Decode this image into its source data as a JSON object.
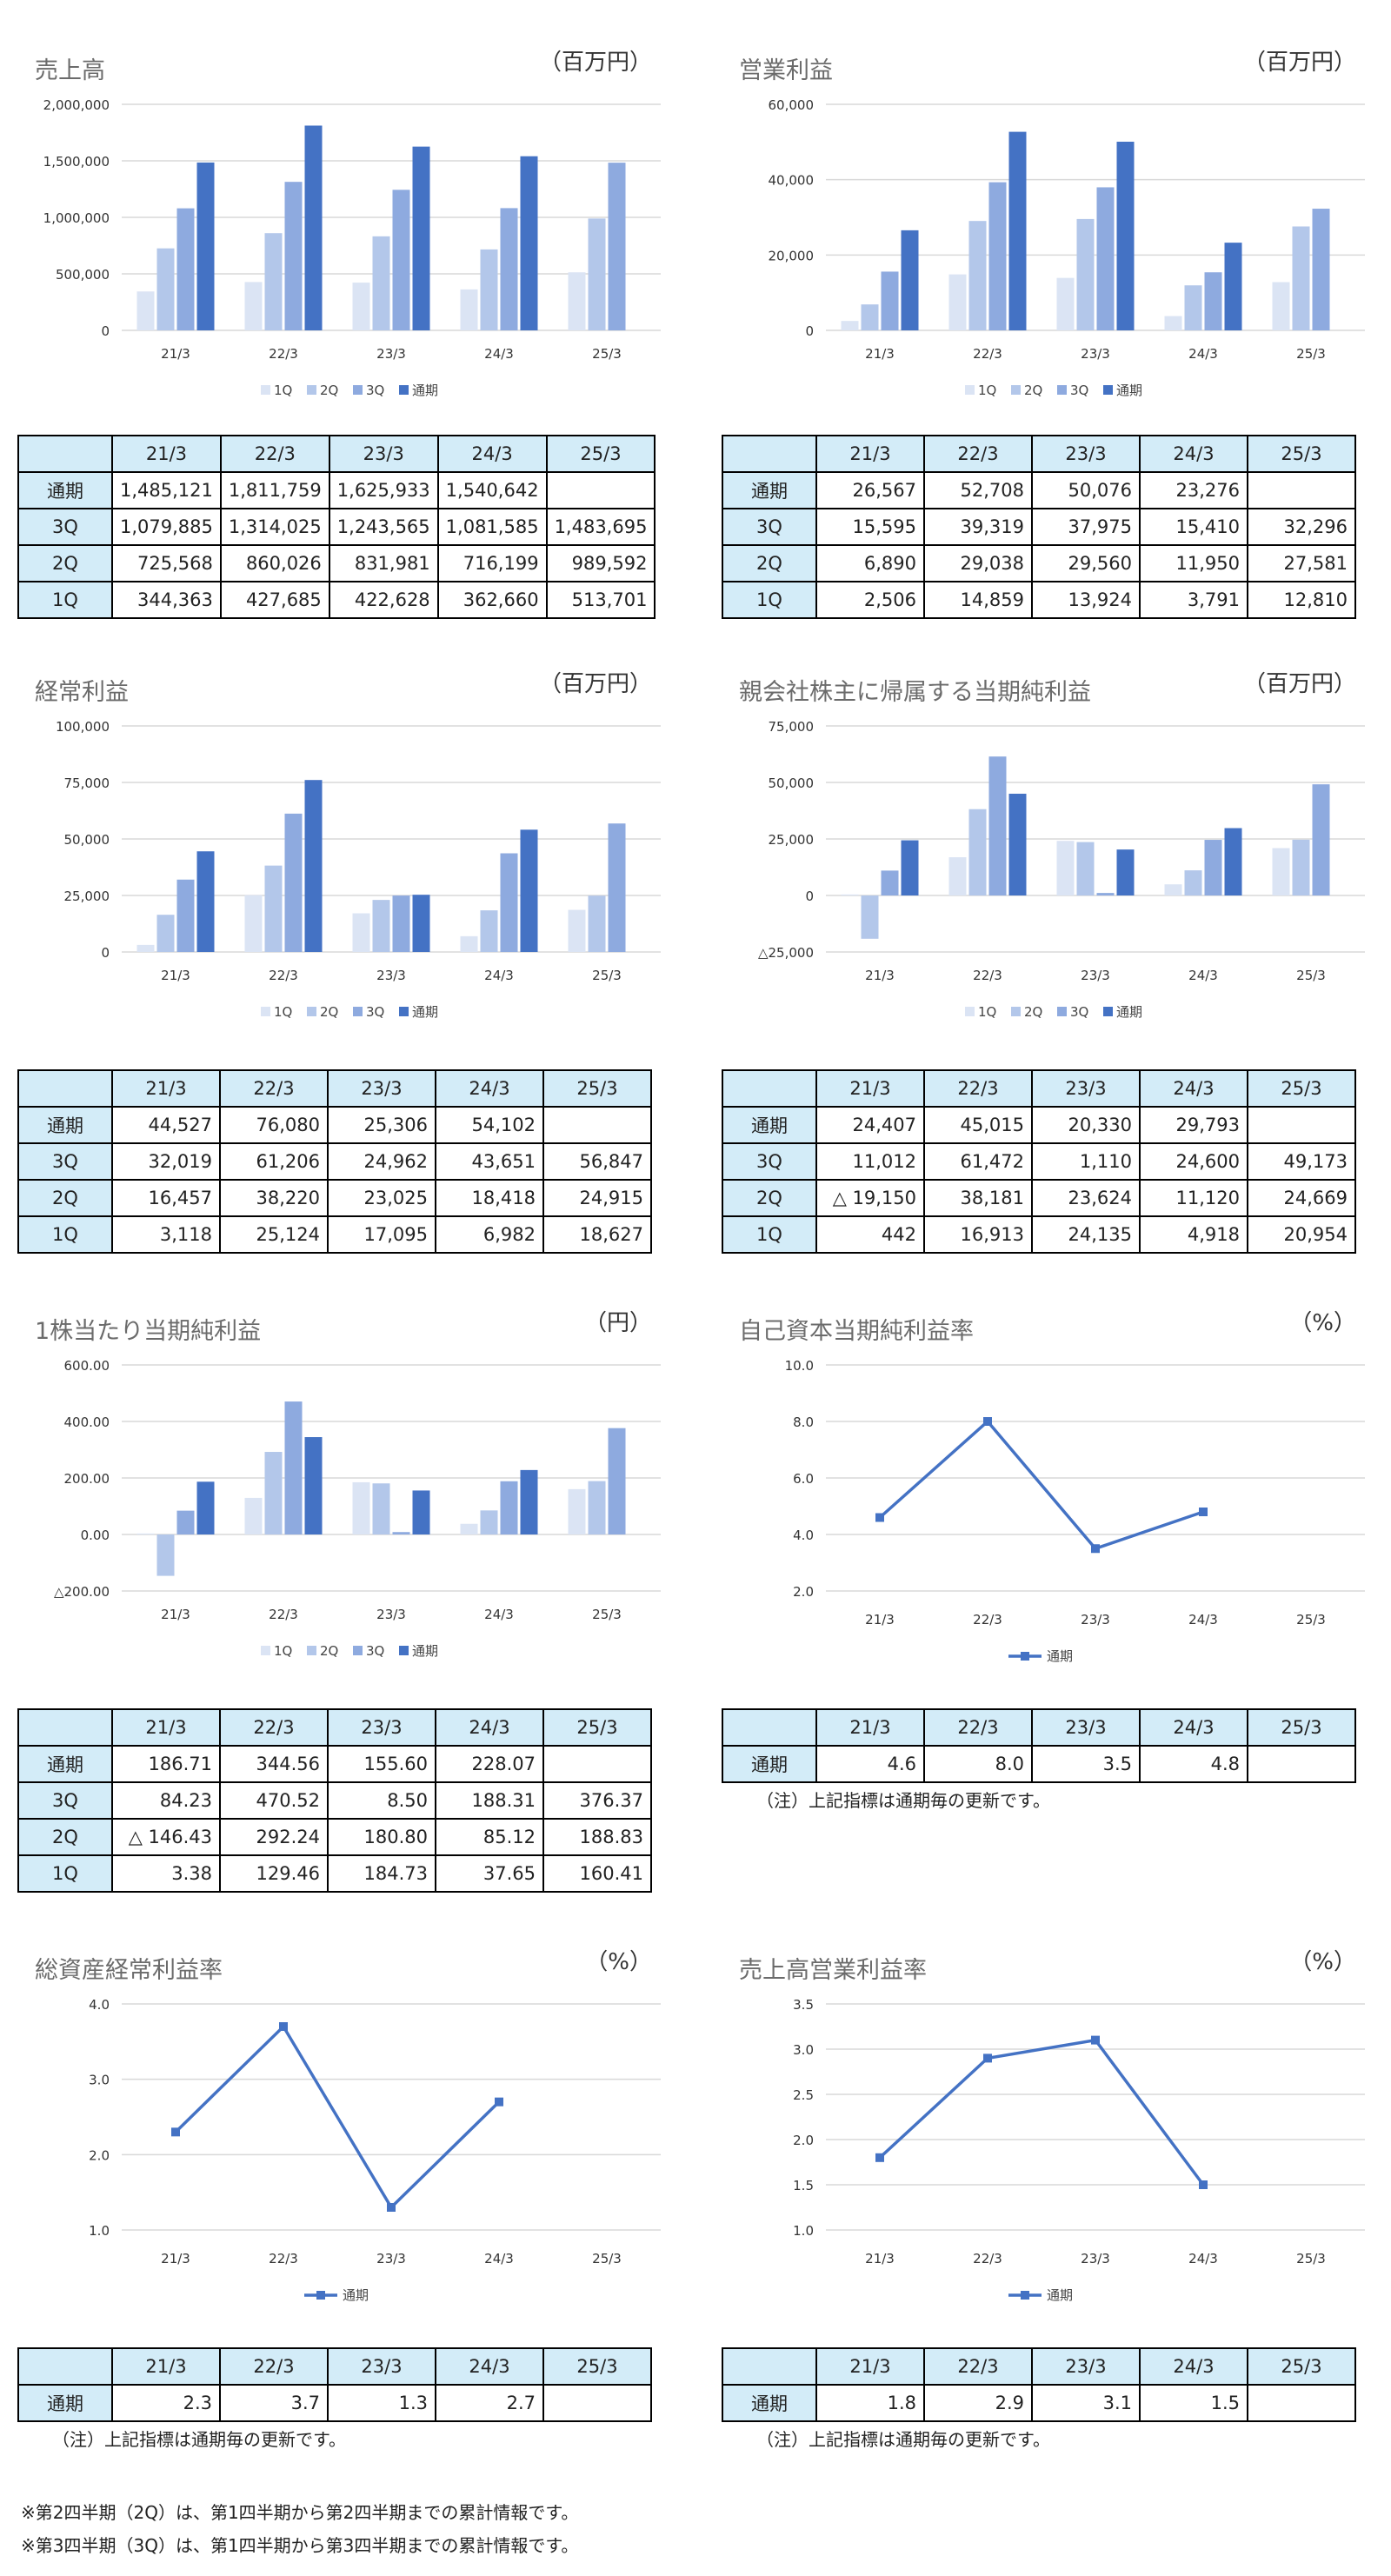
{
  "years": [
    "21/3",
    "22/3",
    "23/3",
    "24/3",
    "25/3"
  ],
  "qlabels": [
    "1Q",
    "2Q",
    "3Q",
    "通期"
  ],
  "colors": {
    "q1": "#dbe4f4",
    "q2": "#b3c7ea",
    "q3": "#8eaadf",
    "full": "#4472c4",
    "grid": "#d9d9d9",
    "header": "#d3ecf8"
  },
  "note_annual": "（注）上記指標は通期毎の更新です。",
  "footnote_2q": "※第2四半期（2Q）は、第1四半期から第2四半期までの累計情報です。",
  "footnote_3q": "※第3四半期（3Q）は、第1四半期から第3四半期までの累計情報です。",
  "panels": [
    {
      "title": "売上高",
      "unit": "（百万円）"
    },
    {
      "title": "営業利益",
      "unit": "（百万円）"
    },
    {
      "title": "経常利益",
      "unit": "（百万円）"
    },
    {
      "title": "親会社株主に帰属する当期純利益",
      "unit": "（百万円）"
    },
    {
      "title": "1株当たり当期純利益",
      "unit": "（円）"
    },
    {
      "title": "自己資本当期純利益率",
      "unit": "（%）"
    },
    {
      "title": "総資産経常利益率",
      "unit": "（%）"
    },
    {
      "title": "売上高営業利益率",
      "unit": "（%）"
    }
  ],
  "chart_data": [
    {
      "type": "bar",
      "title": "売上高",
      "categories": [
        "21/3",
        "22/3",
        "23/3",
        "24/3",
        "25/3"
      ],
      "ylim": [
        0,
        2000000
      ],
      "yticks": [
        {
          "v": 0,
          "label": "0"
        },
        {
          "v": 500000,
          "label": "500,000"
        },
        {
          "v": 1000000,
          "label": "1,000,000"
        },
        {
          "v": 1500000,
          "label": "1,500,000"
        },
        {
          "v": 2000000,
          "label": "2,000,000"
        }
      ],
      "series": [
        {
          "name": "1Q",
          "values": [
            344363,
            427685,
            422628,
            362660,
            513701
          ]
        },
        {
          "name": "2Q",
          "values": [
            725568,
            860026,
            831981,
            716199,
            989592
          ]
        },
        {
          "name": "3Q",
          "values": [
            1079885,
            1314025,
            1243565,
            1081585,
            1483695
          ]
        },
        {
          "name": "通期",
          "values": [
            1485121,
            1811759,
            1625933,
            1540642,
            null
          ]
        }
      ],
      "table": {
        "header": [
          "21/3",
          "22/3",
          "23/3",
          "24/3",
          "25/3"
        ],
        "rows": [
          {
            "label": "通期",
            "cells": [
              "1,485,121",
              "1,811,759",
              "1,625,933",
              "1,540,642",
              ""
            ]
          },
          {
            "label": "3Q",
            "cells": [
              "1,079,885",
              "1,314,025",
              "1,243,565",
              "1,081,585",
              "1,483,695"
            ]
          },
          {
            "label": "2Q",
            "cells": [
              "725,568",
              "860,026",
              "831,981",
              "716,199",
              "989,592"
            ]
          },
          {
            "label": "1Q",
            "cells": [
              "344,363",
              "427,685",
              "422,628",
              "362,660",
              "513,701"
            ]
          }
        ]
      }
    },
    {
      "type": "bar",
      "title": "営業利益",
      "categories": [
        "21/3",
        "22/3",
        "23/3",
        "24/3",
        "25/3"
      ],
      "ylim": [
        0,
        60000
      ],
      "yticks": [
        {
          "v": 0,
          "label": "0"
        },
        {
          "v": 20000,
          "label": "20,000"
        },
        {
          "v": 40000,
          "label": "40,000"
        },
        {
          "v": 60000,
          "label": "60,000"
        }
      ],
      "series": [
        {
          "name": "1Q",
          "values": [
            2506,
            14859,
            13924,
            3791,
            12810
          ]
        },
        {
          "name": "2Q",
          "values": [
            6890,
            29038,
            29560,
            11950,
            27581
          ]
        },
        {
          "name": "3Q",
          "values": [
            15595,
            39319,
            37975,
            15410,
            32296
          ]
        },
        {
          "name": "通期",
          "values": [
            26567,
            52708,
            50076,
            23276,
            null
          ]
        }
      ],
      "table": {
        "header": [
          "21/3",
          "22/3",
          "23/3",
          "24/3",
          "25/3"
        ],
        "rows": [
          {
            "label": "通期",
            "cells": [
              "26,567",
              "52,708",
              "50,076",
              "23,276",
              ""
            ]
          },
          {
            "label": "3Q",
            "cells": [
              "15,595",
              "39,319",
              "37,975",
              "15,410",
              "32,296"
            ]
          },
          {
            "label": "2Q",
            "cells": [
              "6,890",
              "29,038",
              "29,560",
              "11,950",
              "27,581"
            ]
          },
          {
            "label": "1Q",
            "cells": [
              "2,506",
              "14,859",
              "13,924",
              "3,791",
              "12,810"
            ]
          }
        ]
      }
    },
    {
      "type": "bar",
      "title": "経常利益",
      "categories": [
        "21/3",
        "22/3",
        "23/3",
        "24/3",
        "25/3"
      ],
      "ylim": [
        0,
        100000
      ],
      "yticks": [
        {
          "v": 0,
          "label": "0"
        },
        {
          "v": 25000,
          "label": "25,000"
        },
        {
          "v": 50000,
          "label": "50,000"
        },
        {
          "v": 75000,
          "label": "75,000"
        },
        {
          "v": 100000,
          "label": "100,000"
        }
      ],
      "series": [
        {
          "name": "1Q",
          "values": [
            3118,
            25124,
            17095,
            6982,
            18627
          ]
        },
        {
          "name": "2Q",
          "values": [
            16457,
            38220,
            23025,
            18418,
            24915
          ]
        },
        {
          "name": "3Q",
          "values": [
            32019,
            61206,
            24962,
            43651,
            56847
          ]
        },
        {
          "name": "通期",
          "values": [
            44527,
            76080,
            25306,
            54102,
            null
          ]
        }
      ],
      "table": {
        "header": [
          "21/3",
          "22/3",
          "23/3",
          "24/3",
          "25/3"
        ],
        "rows": [
          {
            "label": "通期",
            "cells": [
              "44,527",
              "76,080",
              "25,306",
              "54,102",
              ""
            ]
          },
          {
            "label": "3Q",
            "cells": [
              "32,019",
              "61,206",
              "24,962",
              "43,651",
              "56,847"
            ]
          },
          {
            "label": "2Q",
            "cells": [
              "16,457",
              "38,220",
              "23,025",
              "18,418",
              "24,915"
            ]
          },
          {
            "label": "1Q",
            "cells": [
              "3,118",
              "25,124",
              "17,095",
              "6,982",
              "18,627"
            ]
          }
        ]
      }
    },
    {
      "type": "bar",
      "title": "親会社株主に帰属する当期純利益",
      "categories": [
        "21/3",
        "22/3",
        "23/3",
        "24/3",
        "25/3"
      ],
      "ylim": [
        -25000,
        75000
      ],
      "yticks": [
        {
          "v": -25000,
          "label": "△25,000"
        },
        {
          "v": 0,
          "label": "0"
        },
        {
          "v": 25000,
          "label": "25,000"
        },
        {
          "v": 50000,
          "label": "50,000"
        },
        {
          "v": 75000,
          "label": "75,000"
        }
      ],
      "series": [
        {
          "name": "1Q",
          "values": [
            442,
            16913,
            24135,
            4918,
            20954
          ]
        },
        {
          "name": "2Q",
          "values": [
            -19150,
            38181,
            23624,
            11120,
            24669
          ]
        },
        {
          "name": "3Q",
          "values": [
            11012,
            61472,
            1110,
            24600,
            49173
          ]
        },
        {
          "name": "通期",
          "values": [
            24407,
            45015,
            20330,
            29793,
            null
          ]
        }
      ],
      "table": {
        "header": [
          "21/3",
          "22/3",
          "23/3",
          "24/3",
          "25/3"
        ],
        "rows": [
          {
            "label": "通期",
            "cells": [
              "24,407",
              "45,015",
              "20,330",
              "29,793",
              ""
            ]
          },
          {
            "label": "3Q",
            "cells": [
              "11,012",
              "61,472",
              "1,110",
              "24,600",
              "49,173"
            ]
          },
          {
            "label": "2Q",
            "cells": [
              "△ 19,150",
              "38,181",
              "23,624",
              "11,120",
              "24,669"
            ]
          },
          {
            "label": "1Q",
            "cells": [
              "442",
              "16,913",
              "24,135",
              "4,918",
              "20,954"
            ]
          }
        ]
      }
    },
    {
      "type": "bar",
      "title": "1株当たり当期純利益",
      "categories": [
        "21/3",
        "22/3",
        "23/3",
        "24/3",
        "25/3"
      ],
      "ylim": [
        -200,
        600
      ],
      "yticks": [
        {
          "v": -200,
          "label": "△200.00"
        },
        {
          "v": 0,
          "label": "0.00"
        },
        {
          "v": 200,
          "label": "200.00"
        },
        {
          "v": 400,
          "label": "400.00"
        },
        {
          "v": 600,
          "label": "600.00"
        }
      ],
      "series": [
        {
          "name": "1Q",
          "values": [
            3.38,
            129.46,
            184.73,
            37.65,
            160.41
          ]
        },
        {
          "name": "2Q",
          "values": [
            -146.43,
            292.24,
            180.8,
            85.12,
            188.83
          ]
        },
        {
          "name": "3Q",
          "values": [
            84.23,
            470.52,
            8.5,
            188.31,
            376.37
          ]
        },
        {
          "name": "通期",
          "values": [
            186.71,
            344.56,
            155.6,
            228.07,
            null
          ]
        }
      ],
      "table": {
        "header": [
          "21/3",
          "22/3",
          "23/3",
          "24/3",
          "25/3"
        ],
        "rows": [
          {
            "label": "通期",
            "cells": [
              "186.71",
              "344.56",
              "155.60",
              "228.07",
              ""
            ]
          },
          {
            "label": "3Q",
            "cells": [
              "84.23",
              "470.52",
              "8.50",
              "188.31",
              "376.37"
            ]
          },
          {
            "label": "2Q",
            "cells": [
              "△ 146.43",
              "292.24",
              "180.80",
              "85.12",
              "188.83"
            ]
          },
          {
            "label": "1Q",
            "cells": [
              "3.38",
              "129.46",
              "184.73",
              "37.65",
              "160.41"
            ]
          }
        ]
      }
    },
    {
      "type": "line",
      "title": "自己資本当期純利益率",
      "categories": [
        "21/3",
        "22/3",
        "23/3",
        "24/3",
        "25/3"
      ],
      "ylim": [
        2,
        10
      ],
      "yticks": [
        {
          "v": 2,
          "label": "2.0"
        },
        {
          "v": 4,
          "label": "4.0"
        },
        {
          "v": 6,
          "label": "6.0"
        },
        {
          "v": 8,
          "label": "8.0"
        },
        {
          "v": 10,
          "label": "10.0"
        }
      ],
      "series": [
        {
          "name": "通期",
          "values": [
            4.6,
            8.0,
            3.5,
            4.8,
            null
          ]
        }
      ],
      "table": {
        "header": [
          "21/3",
          "22/3",
          "23/3",
          "24/3",
          "25/3"
        ],
        "rows": [
          {
            "label": "通期",
            "cells": [
              "4.6",
              "8.0",
              "3.5",
              "4.8",
              ""
            ]
          }
        ]
      }
    },
    {
      "type": "line",
      "title": "総資産経常利益率",
      "categories": [
        "21/3",
        "22/3",
        "23/3",
        "24/3",
        "25/3"
      ],
      "ylim": [
        1,
        4
      ],
      "yticks": [
        {
          "v": 1,
          "label": "1.0"
        },
        {
          "v": 2,
          "label": "2.0"
        },
        {
          "v": 3,
          "label": "3.0"
        },
        {
          "v": 4,
          "label": "4.0"
        }
      ],
      "series": [
        {
          "name": "通期",
          "values": [
            2.3,
            3.7,
            1.3,
            2.7,
            null
          ]
        }
      ],
      "table": {
        "header": [
          "21/3",
          "22/3",
          "23/3",
          "24/3",
          "25/3"
        ],
        "rows": [
          {
            "label": "通期",
            "cells": [
              "2.3",
              "3.7",
              "1.3",
              "2.7",
              ""
            ]
          }
        ]
      }
    },
    {
      "type": "line",
      "title": "売上高営業利益率",
      "categories": [
        "21/3",
        "22/3",
        "23/3",
        "24/3",
        "25/3"
      ],
      "ylim": [
        1,
        3.5
      ],
      "yticks": [
        {
          "v": 1,
          "label": "1.0"
        },
        {
          "v": 1.5,
          "label": "1.5"
        },
        {
          "v": 2,
          "label": "2.0"
        },
        {
          "v": 2.5,
          "label": "2.5"
        },
        {
          "v": 3,
          "label": "3.0"
        },
        {
          "v": 3.5,
          "label": "3.5"
        }
      ],
      "series": [
        {
          "name": "通期",
          "values": [
            1.8,
            2.9,
            3.1,
            1.5,
            null
          ]
        }
      ],
      "table": {
        "header": [
          "21/3",
          "22/3",
          "23/3",
          "24/3",
          "25/3"
        ],
        "rows": [
          {
            "label": "通期",
            "cells": [
              "1.8",
              "2.9",
              "3.1",
              "1.5",
              ""
            ]
          }
        ]
      }
    }
  ]
}
